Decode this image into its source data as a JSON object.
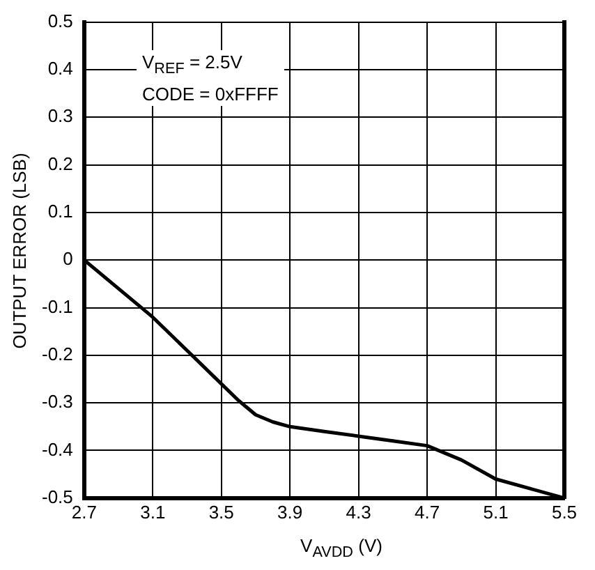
{
  "chart_data": {
    "type": "line",
    "xlabel": "V$_{AVDD}$ (V)",
    "ylabel": "OUTPUT ERROR (LSB)",
    "annotations": [
      "V$_{REF}$ = 2.5V",
      "CODE = 0xFFFF"
    ],
    "x": [
      2.7,
      2.9,
      3.1,
      3.3,
      3.5,
      3.6,
      3.7,
      3.8,
      3.9,
      4.1,
      4.3,
      4.5,
      4.7,
      4.9,
      5.1,
      5.3,
      5.5
    ],
    "series": [
      {
        "color": "#000000",
        "values": [
          0,
          -0.06,
          -0.12,
          -0.19,
          -0.26,
          -0.295,
          -0.325,
          -0.34,
          -0.35,
          -0.36,
          -0.37,
          -0.38,
          -0.39,
          -0.42,
          -0.46,
          -0.48,
          -0.5
        ]
      }
    ],
    "xlim": [
      2.7,
      5.5
    ],
    "xticks": [
      2.7,
      3.1,
      3.5,
      3.9,
      4.3,
      4.7,
      5.1,
      5.5
    ],
    "ylim": [
      -0.5,
      0.5
    ],
    "yticks": [
      -0.5,
      -0.4,
      -0.3,
      -0.2,
      -0.1,
      0,
      0.1,
      0.2,
      0.3,
      0.4,
      0.5
    ],
    "grid": true,
    "legend": false,
    "marker": "none",
    "line_style": "solid"
  }
}
